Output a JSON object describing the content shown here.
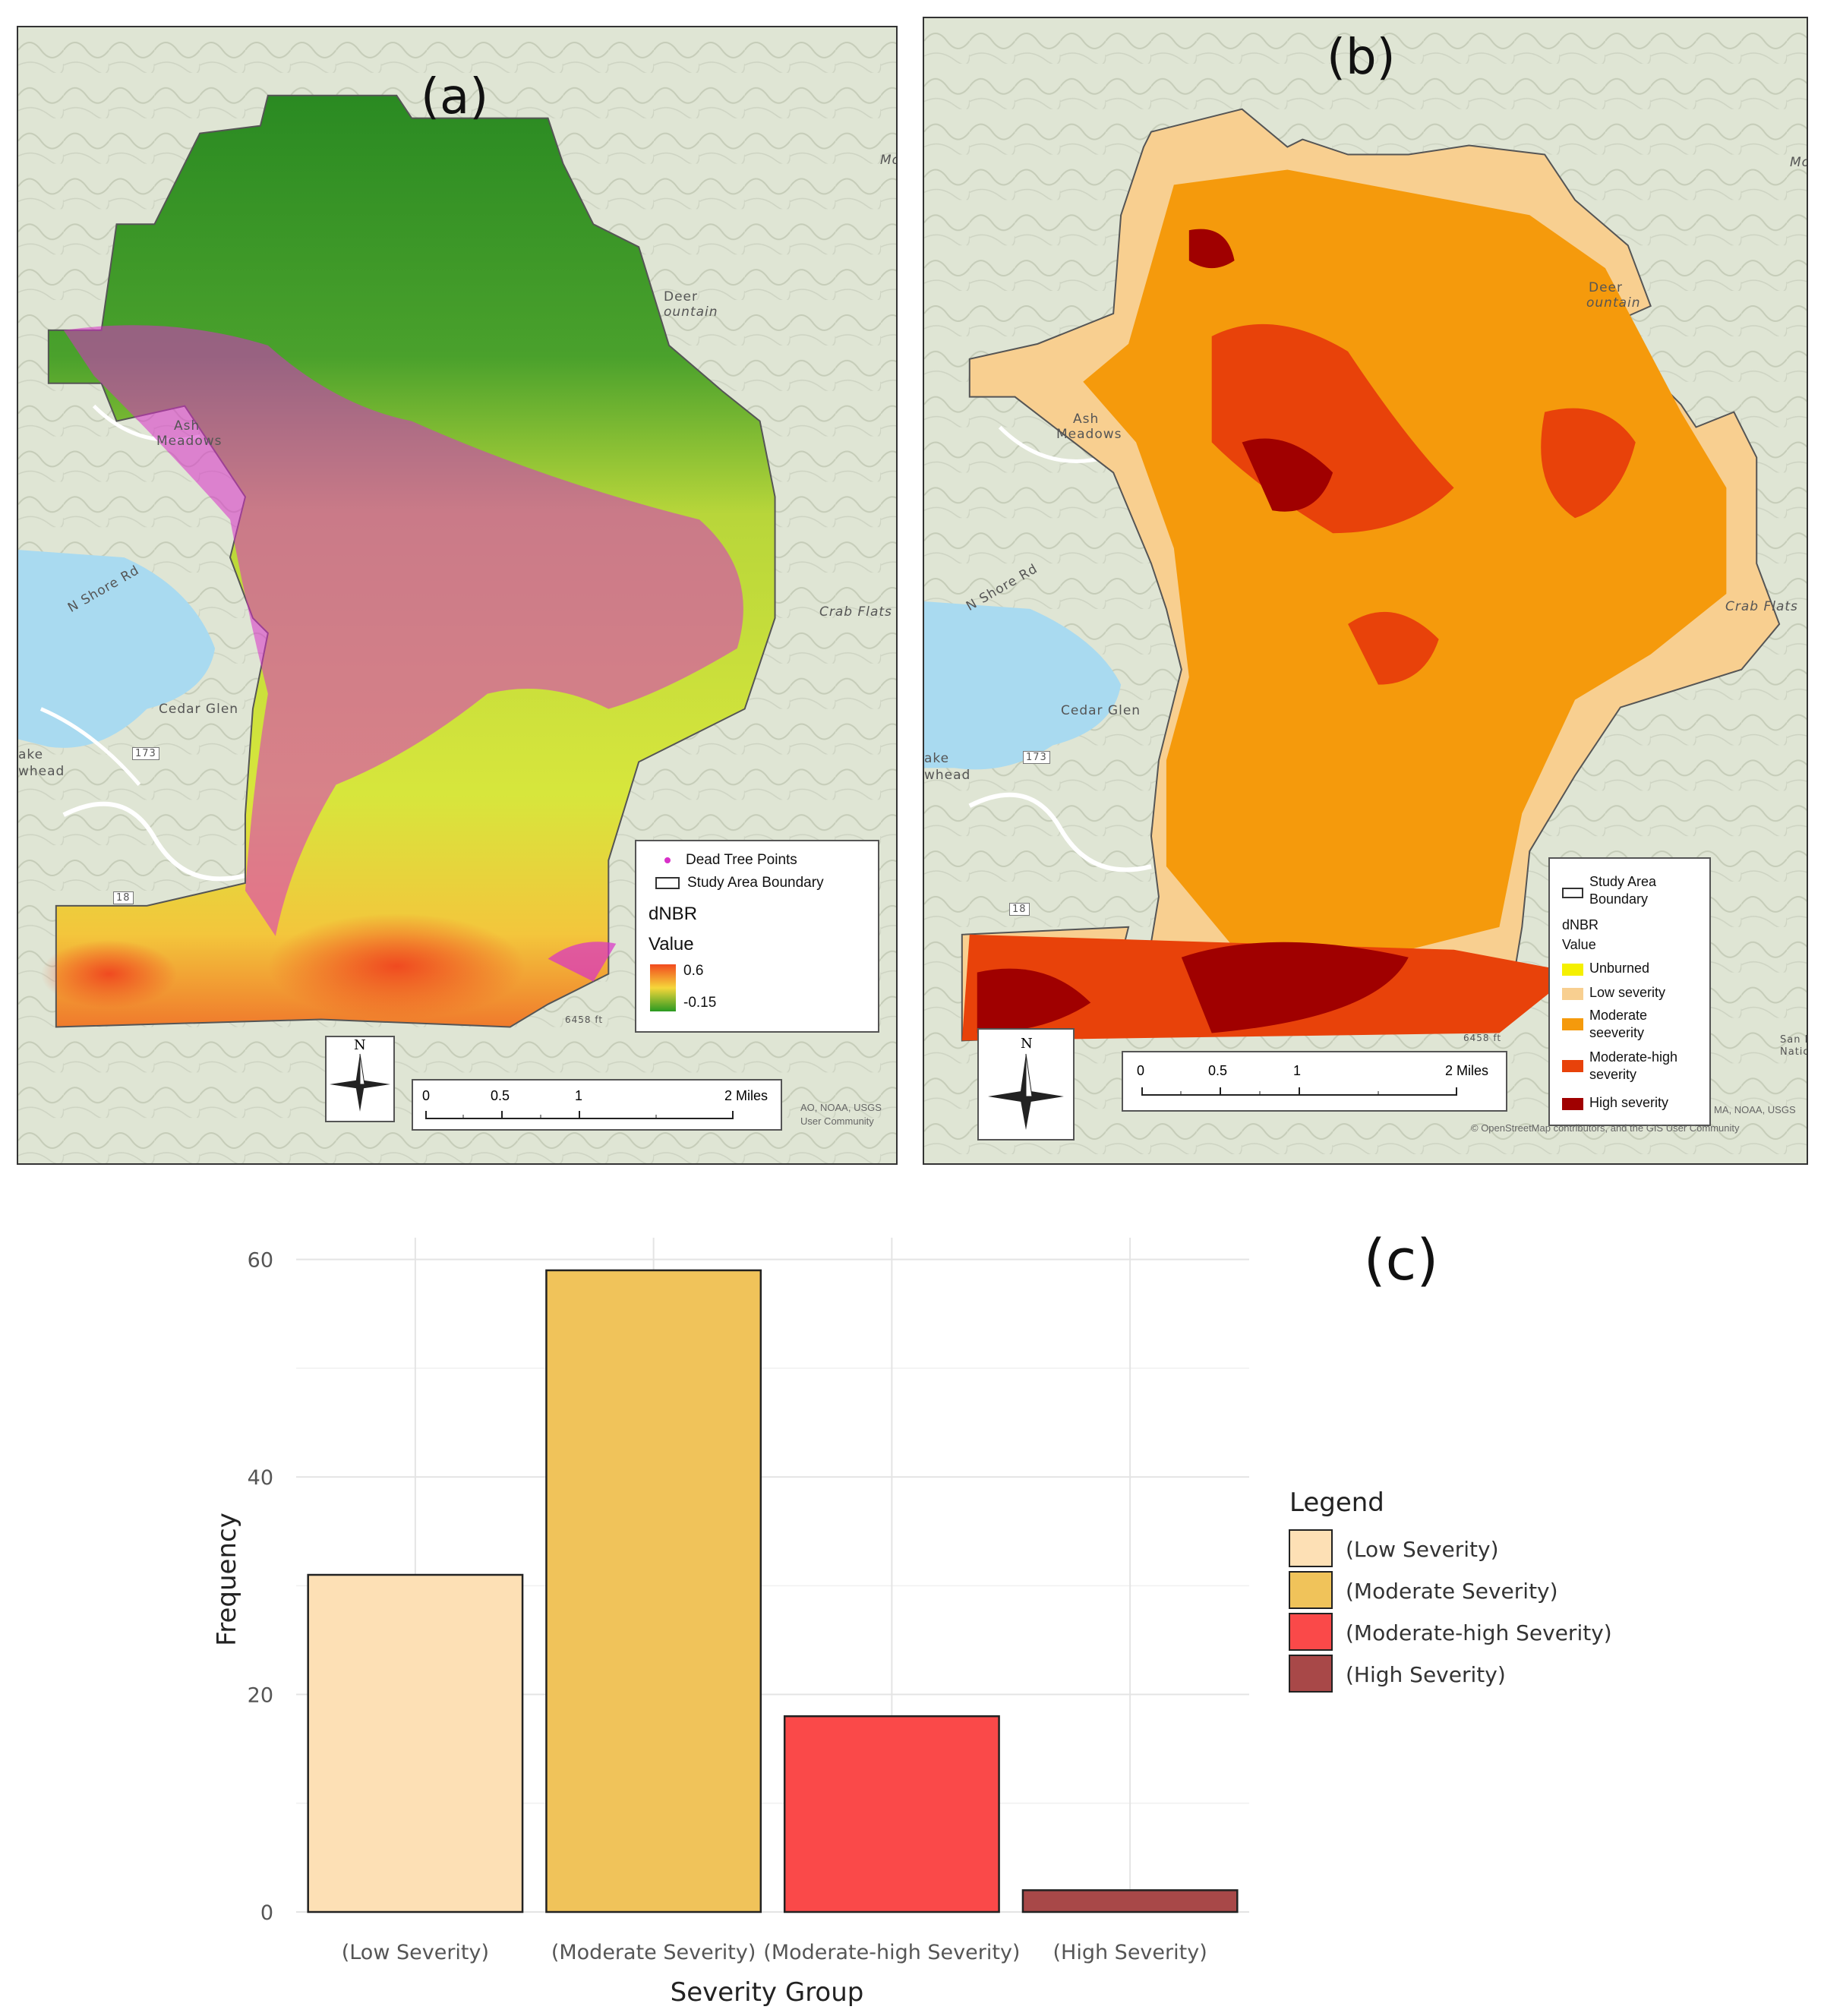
{
  "panel_a": {
    "label": "(a)",
    "places": [
      "Deer",
      "ountain",
      "Ash",
      "Meadows",
      "N Shore Rd",
      "Crab Flats",
      "Cedar Glen",
      "ake",
      "whead",
      "173",
      "18",
      "Mo"
    ],
    "legend": {
      "dead_tree_points": "Dead Tree Points",
      "boundary": "Study Area Boundary",
      "title": "dNBR",
      "subtitle": "Value",
      "max_label": "0.6",
      "min_label": "-0.15"
    },
    "scale_labels": [
      "0",
      "0.5",
      "1",
      "2 Miles"
    ],
    "north_label": "N",
    "credit_lines": [
      "AO, NOAA, USGS",
      "User Community"
    ],
    "elevation_text": "6458 ft"
  },
  "panel_b": {
    "label": "(b)",
    "places": [
      "Deer",
      "ountain",
      "Ash",
      "Meadows",
      "N Shore Rd",
      "Crab Flats",
      "Cedar Glen",
      "ake",
      "whead",
      "173",
      "18",
      "Mo",
      "San Be",
      "Nation"
    ],
    "legend": {
      "boundary_line1": "Study Area",
      "boundary_line2": "Boundary",
      "title": "dNBR",
      "subtitle": "Value",
      "items": [
        {
          "label": "Unburned",
          "color": "#f5f000"
        },
        {
          "label": "Low severity",
          "color": "#f8cf90"
        },
        {
          "label": "Moderate",
          "label2": "seeverity",
          "color": "#f59a0c"
        },
        {
          "label": "Moderate-high",
          "label2": "severity",
          "color": "#e8420a"
        },
        {
          "label": "High severity",
          "color": "#a00000"
        }
      ]
    },
    "scale_labels": [
      "0",
      "0.5",
      "1",
      "2 Miles"
    ],
    "north_label": "N",
    "credit_lines": [
      "MA, NOAA, USGS",
      "© OpenStreetMap contributors, and the GIS User Community"
    ],
    "elevation_text": "6458 ft"
  },
  "panel_c": {
    "label": "(c)",
    "legend_title": "Legend"
  },
  "chart_data": {
    "type": "bar",
    "categories": [
      "(Low Severity)",
      "(Moderate Severity)",
      "(Moderate-high Severity)",
      "(High Severity)"
    ],
    "values": [
      31,
      59,
      18,
      2
    ],
    "colors": [
      "#fde0b5",
      "#f0c35a",
      "#fa4949",
      "#a84848"
    ],
    "xlabel": "Severity Group",
    "ylabel": "Frequency",
    "ylim": [
      0,
      62
    ],
    "yticks": [
      0,
      20,
      40,
      60
    ],
    "grid": true,
    "legend_title": "Legend",
    "legend_position": "right"
  }
}
